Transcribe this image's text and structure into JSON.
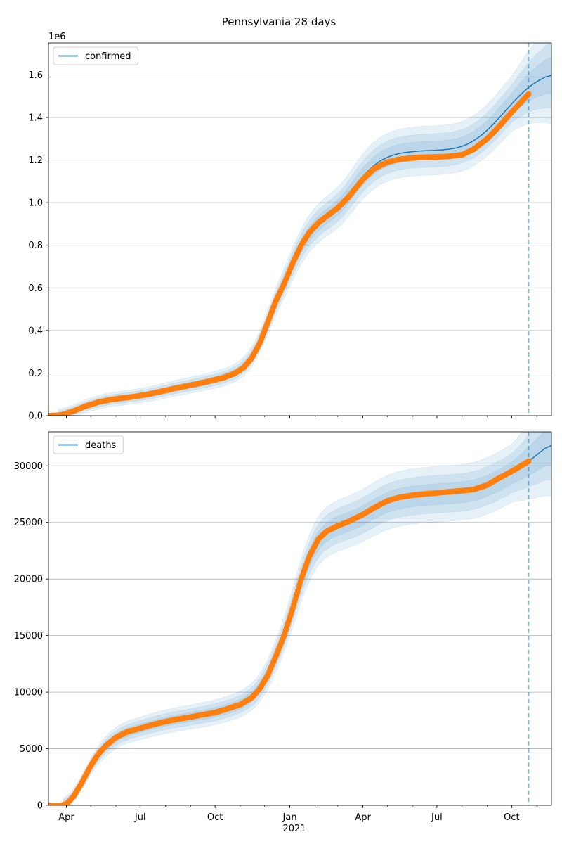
{
  "chart_data": {
    "title": "Pennsylvania 28 days",
    "xaxis": {
      "type": "date",
      "range": [
        "2020-03-10",
        "2021-11-19"
      ],
      "ticks": [
        {
          "date": "2020-04-01",
          "label": "Apr"
        },
        {
          "date": "2020-07-01",
          "label": "Jul"
        },
        {
          "date": "2020-10-01",
          "label": "Oct"
        },
        {
          "date": "2021-01-01",
          "label": "Jan"
        },
        {
          "date": "2021-04-01",
          "label": "Apr"
        },
        {
          "date": "2021-07-01",
          "label": "Jul"
        },
        {
          "date": "2021-10-01",
          "label": "Oct"
        }
      ],
      "year_label": "2021",
      "forecast_start": "2021-10-22"
    },
    "panels": [
      {
        "type": "line",
        "name": "confirmed",
        "legend": "confirmed",
        "legend_position": "top-left",
        "grid": "horizontal",
        "ylim": [
          0,
          1750000
        ],
        "yticks": [
          0,
          200000,
          400000,
          600000,
          800000,
          1000000,
          1200000,
          1400000,
          1600000
        ],
        "ytick_labels": [
          "0.0",
          "0.2",
          "0.4",
          "0.6",
          "0.8",
          "1.0",
          "1.2",
          "1.4",
          "1.6"
        ],
        "offset_label": "1e6",
        "observed": {
          "name": "observed",
          "dates": [
            "2020-03-10",
            "2020-03-25",
            "2020-04-10",
            "2020-04-25",
            "2020-05-10",
            "2020-05-25",
            "2020-06-10",
            "2020-06-25",
            "2020-07-10",
            "2020-07-25",
            "2020-08-10",
            "2020-08-25",
            "2020-09-10",
            "2020-09-25",
            "2020-10-10",
            "2020-10-25",
            "2020-11-05",
            "2020-11-15",
            "2020-11-25",
            "2020-12-05",
            "2020-12-15",
            "2020-12-25",
            "2021-01-05",
            "2021-01-15",
            "2021-01-25",
            "2021-02-05",
            "2021-02-15",
            "2021-03-01",
            "2021-03-15",
            "2021-04-01",
            "2021-04-15",
            "2021-05-01",
            "2021-05-15",
            "2021-06-01",
            "2021-06-15",
            "2021-07-01",
            "2021-07-15",
            "2021-08-01",
            "2021-08-15",
            "2021-09-01",
            "2021-09-15",
            "2021-10-01",
            "2021-10-22"
          ],
          "values": [
            0,
            2000,
            22000,
            45000,
            63000,
            75000,
            83000,
            90000,
            100000,
            112000,
            126000,
            138000,
            150000,
            163000,
            177000,
            198000,
            225000,
            270000,
            340000,
            440000,
            540000,
            620000,
            720000,
            800000,
            860000,
            905000,
            935000,
            975000,
            1030000,
            1110000,
            1160000,
            1190000,
            1203000,
            1210000,
            1213000,
            1215000,
            1217000,
            1225000,
            1250000,
            1300000,
            1355000,
            1425000,
            1510000
          ]
        },
        "model": {
          "name": "model",
          "dates": [
            "2021-03-15",
            "2021-04-01",
            "2021-04-15",
            "2021-05-01",
            "2021-05-15",
            "2021-06-01",
            "2021-06-15",
            "2021-07-01",
            "2021-07-15",
            "2021-08-01",
            "2021-08-15",
            "2021-09-01",
            "2021-09-15",
            "2021-10-01",
            "2021-10-22",
            "2021-11-05",
            "2021-11-19"
          ],
          "values": [
            1045000,
            1125000,
            1180000,
            1215000,
            1232000,
            1240000,
            1244000,
            1246000,
            1250000,
            1262000,
            1288000,
            1338000,
            1395000,
            1465000,
            1545000,
            1578000,
            1605000
          ]
        }
      },
      {
        "type": "line",
        "name": "deaths",
        "legend": "deaths",
        "legend_position": "top-left",
        "grid": "horizontal",
        "ylim": [
          0,
          33000
        ],
        "yticks": [
          0,
          5000,
          10000,
          15000,
          20000,
          25000,
          30000
        ],
        "ytick_labels": [
          "0",
          "5000",
          "10000",
          "15000",
          "20000",
          "25000",
          "30000"
        ],
        "offset_label": "",
        "observed": {
          "name": "observed",
          "dates": [
            "2020-03-10",
            "2020-03-25",
            "2020-04-01",
            "2020-04-10",
            "2020-04-20",
            "2020-05-01",
            "2020-05-10",
            "2020-05-20",
            "2020-06-01",
            "2020-06-15",
            "2020-07-01",
            "2020-07-15",
            "2020-08-01",
            "2020-08-15",
            "2020-09-01",
            "2020-09-15",
            "2020-10-01",
            "2020-10-15",
            "2020-11-01",
            "2020-11-15",
            "2020-11-25",
            "2020-12-05",
            "2020-12-15",
            "2020-12-25",
            "2021-01-05",
            "2021-01-15",
            "2021-01-25",
            "2021-02-05",
            "2021-02-15",
            "2021-03-01",
            "2021-03-15",
            "2021-04-01",
            "2021-04-15",
            "2021-05-01",
            "2021-05-15",
            "2021-06-01",
            "2021-06-15",
            "2021-07-01",
            "2021-07-15",
            "2021-08-01",
            "2021-08-15",
            "2021-09-01",
            "2021-09-15",
            "2021-10-01",
            "2021-10-22"
          ],
          "values": [
            0,
            0,
            100,
            800,
            2000,
            3500,
            4500,
            5300,
            6000,
            6500,
            6800,
            7100,
            7400,
            7600,
            7800,
            8000,
            8200,
            8500,
            8900,
            9500,
            10300,
            11500,
            13200,
            15000,
            17500,
            20000,
            22000,
            23500,
            24200,
            24700,
            25100,
            25700,
            26300,
            26900,
            27200,
            27400,
            27500,
            27600,
            27700,
            27800,
            27900,
            28300,
            28900,
            29500,
            30400
          ]
        },
        "model": {
          "name": "model",
          "dates": [
            "2021-03-15",
            "2021-04-01",
            "2021-04-15",
            "2021-05-01",
            "2021-05-15",
            "2021-06-01",
            "2021-06-15",
            "2021-07-01",
            "2021-07-15",
            "2021-08-01",
            "2021-08-15",
            "2021-09-01",
            "2021-09-15",
            "2021-10-01",
            "2021-10-22",
            "2021-11-05",
            "2021-11-19"
          ],
          "values": [
            25000,
            25600,
            26200,
            26800,
            27100,
            27300,
            27400,
            27500,
            27550,
            27650,
            27800,
            28200,
            28700,
            29300,
            30400,
            31200,
            32000
          ]
        }
      }
    ]
  }
}
